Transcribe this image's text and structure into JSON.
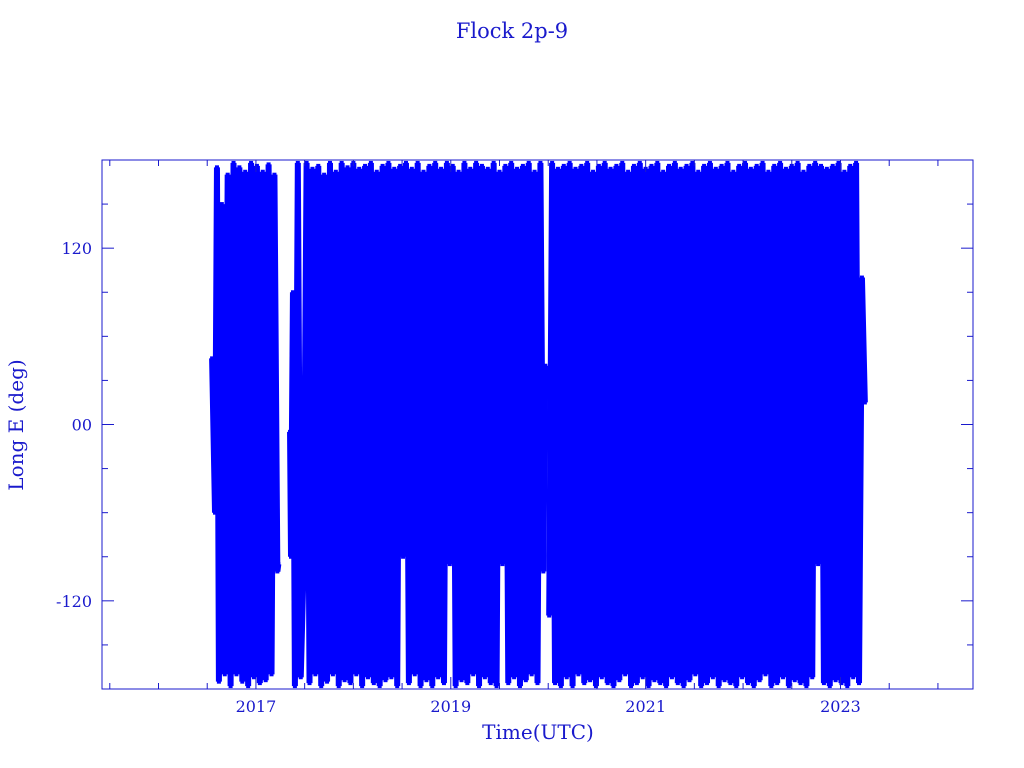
{
  "chart_data": {
    "type": "line",
    "title": "Flock 2p-9",
    "xlabel": "Time(UTC)",
    "ylabel": "Long E (deg)",
    "xlim": [
      2015.42,
      2024.36
    ],
    "ylim": [
      -180,
      180
    ],
    "x_ticks": [
      "2017",
      "2019",
      "2021",
      "2023"
    ],
    "x_tick_values": [
      2017,
      2019,
      2021,
      2023
    ],
    "y_ticks": [
      "120",
      "00",
      "-120"
    ],
    "y_tick_values": [
      120,
      0,
      -120
    ],
    "grid": false,
    "line_color": "#0000ff",
    "axis_color": "#1a1acc",
    "series": [
      {
        "segments": [
          [
            [
              2016.55,
              45
            ],
            [
              2016.58,
              -60
            ],
            [
              2016.6,
              175
            ],
            [
              2016.62,
              -175
            ],
            [
              2016.65,
              150
            ],
            [
              2016.68,
              -170
            ],
            [
              2016.71,
              170
            ],
            [
              2016.74,
              -178
            ],
            [
              2016.77,
              178
            ],
            [
              2016.8,
              -170
            ],
            [
              2016.83,
              175
            ],
            [
              2016.86,
              -175
            ],
            [
              2016.89,
              172
            ],
            [
              2016.92,
              -178
            ],
            [
              2016.95,
              178
            ],
            [
              2016.98,
              -172
            ],
            [
              2017.01,
              176
            ],
            [
              2017.04,
              -176
            ],
            [
              2017.07,
              172
            ],
            [
              2017.1,
              -174
            ],
            [
              2017.13,
              177
            ],
            [
              2017.16,
              -170
            ],
            [
              2017.19,
              170
            ],
            [
              2017.22,
              -100
            ],
            [
              2017.23,
              -95
            ]
          ],
          [
            [
              2017.35,
              -5
            ],
            [
              2017.36,
              -90
            ],
            [
              2017.38,
              90
            ],
            [
              2017.4,
              -178
            ],
            [
              2017.43,
              178
            ],
            [
              2017.46,
              -172
            ],
            [
              2017.49,
              -95
            ],
            [
              2017.52,
              178
            ],
            [
              2017.55,
              -176
            ],
            [
              2017.58,
              174
            ],
            [
              2017.61,
              -170
            ],
            [
              2017.64,
              176
            ],
            [
              2017.67,
              -178
            ],
            [
              2017.7,
              170
            ],
            [
              2017.73,
              -175
            ],
            [
              2017.76,
              178
            ],
            [
              2017.79,
              -170
            ],
            [
              2017.82,
              172
            ],
            [
              2017.85,
              -178
            ],
            [
              2017.88,
              178
            ],
            [
              2017.91,
              -174
            ],
            [
              2017.94,
              175
            ],
            [
              2017.97,
              -176
            ],
            [
              2018.0,
              178
            ],
            [
              2018.03,
              -170
            ],
            [
              2018.06,
              174
            ],
            [
              2018.09,
              -178
            ],
            [
              2018.12,
              176
            ],
            [
              2018.15,
              -172
            ],
            [
              2018.18,
              178
            ],
            [
              2018.21,
              -176
            ],
            [
              2018.24,
              172
            ],
            [
              2018.27,
              -178
            ],
            [
              2018.3,
              176
            ],
            [
              2018.33,
              -174
            ],
            [
              2018.36,
              178
            ],
            [
              2018.39,
              -172
            ],
            [
              2018.42,
              174
            ],
            [
              2018.45,
              -178
            ],
            [
              2018.48,
              176
            ],
            [
              2018.51,
              -90
            ],
            [
              2018.54,
              178
            ],
            [
              2018.57,
              -176
            ],
            [
              2018.6,
              174
            ],
            [
              2018.63,
              -170
            ],
            [
              2018.66,
              178
            ],
            [
              2018.69,
              -178
            ],
            [
              2018.72,
              172
            ],
            [
              2018.75,
              -174
            ],
            [
              2018.78,
              176
            ],
            [
              2018.81,
              -178
            ],
            [
              2018.84,
              178
            ],
            [
              2018.87,
              -172
            ],
            [
              2018.9,
              174
            ],
            [
              2018.93,
              -176
            ],
            [
              2018.96,
              178
            ],
            [
              2018.99,
              -95
            ],
            [
              2019.02,
              176
            ],
            [
              2019.05,
              -178
            ],
            [
              2019.08,
              172
            ],
            [
              2019.11,
              -174
            ],
            [
              2019.14,
              178
            ],
            [
              2019.17,
              -176
            ],
            [
              2019.2,
              174
            ],
            [
              2019.23,
              -170
            ],
            [
              2019.26,
              178
            ],
            [
              2019.29,
              -178
            ],
            [
              2019.32,
              176
            ],
            [
              2019.35,
              -172
            ],
            [
              2019.38,
              174
            ],
            [
              2019.41,
              -176
            ],
            [
              2019.44,
              178
            ],
            [
              2019.47,
              -178
            ],
            [
              2019.5,
              172
            ],
            [
              2019.53,
              -95
            ],
            [
              2019.56,
              176
            ],
            [
              2019.59,
              -176
            ],
            [
              2019.62,
              178
            ],
            [
              2019.65,
              -172
            ],
            [
              2019.68,
              174
            ],
            [
              2019.71,
              -178
            ],
            [
              2019.74,
              176
            ],
            [
              2019.77,
              -174
            ],
            [
              2019.8,
              178
            ],
            [
              2019.83,
              -170
            ],
            [
              2019.86,
              172
            ],
            [
              2019.89,
              -176
            ],
            [
              2019.92,
              178
            ],
            [
              2019.95,
              -100
            ],
            [
              2019.97,
              40
            ]
          ],
          [
            [
              2020.01,
              -130
            ],
            [
              2020.04,
              178
            ],
            [
              2020.07,
              -176
            ],
            [
              2020.1,
              174
            ],
            [
              2020.13,
              -178
            ],
            [
              2020.16,
              176
            ],
            [
              2020.19,
              -172
            ],
            [
              2020.22,
              178
            ],
            [
              2020.25,
              -178
            ],
            [
              2020.28,
              174
            ],
            [
              2020.31,
              -170
            ],
            [
              2020.34,
              176
            ],
            [
              2020.37,
              -176
            ],
            [
              2020.4,
              178
            ],
            [
              2020.43,
              -174
            ],
            [
              2020.46,
              172
            ],
            [
              2020.49,
              -178
            ],
            [
              2020.52,
              176
            ],
            [
              2020.55,
              -172
            ],
            [
              2020.58,
              178
            ],
            [
              2020.61,
              -176
            ],
            [
              2020.64,
              174
            ],
            [
              2020.67,
              -178
            ],
            [
              2020.7,
              176
            ],
            [
              2020.73,
              -174
            ],
            [
              2020.76,
              178
            ],
            [
              2020.79,
              -170
            ],
            [
              2020.82,
              172
            ],
            [
              2020.85,
              -178
            ],
            [
              2020.88,
              176
            ],
            [
              2020.91,
              -176
            ],
            [
              2020.94,
              178
            ],
            [
              2020.97,
              -172
            ],
            [
              2021.0,
              174
            ],
            [
              2021.03,
              -178
            ],
            [
              2021.06,
              176
            ],
            [
              2021.09,
              -174
            ],
            [
              2021.12,
              178
            ],
            [
              2021.15,
              -176
            ],
            [
              2021.18,
              172
            ],
            [
              2021.21,
              -178
            ],
            [
              2021.24,
              176
            ],
            [
              2021.27,
              -172
            ],
            [
              2021.3,
              178
            ],
            [
              2021.33,
              -176
            ],
            [
              2021.36,
              174
            ],
            [
              2021.39,
              -178
            ],
            [
              2021.42,
              176
            ],
            [
              2021.45,
              -174
            ],
            [
              2021.48,
              178
            ],
            [
              2021.51,
              -170
            ],
            [
              2021.54,
              172
            ],
            [
              2021.57,
              -178
            ],
            [
              2021.6,
              176
            ],
            [
              2021.63,
              -176
            ],
            [
              2021.66,
              178
            ],
            [
              2021.69,
              -172
            ],
            [
              2021.72,
              174
            ],
            [
              2021.75,
              -178
            ],
            [
              2021.78,
              176
            ],
            [
              2021.81,
              -174
            ],
            [
              2021.84,
              178
            ],
            [
              2021.87,
              -176
            ],
            [
              2021.9,
              172
            ],
            [
              2021.93,
              -178
            ],
            [
              2021.96,
              176
            ],
            [
              2021.99,
              -172
            ],
            [
              2022.02,
              178
            ],
            [
              2022.05,
              -176
            ],
            [
              2022.08,
              174
            ],
            [
              2022.11,
              -178
            ],
            [
              2022.14,
              176
            ],
            [
              2022.17,
              -174
            ],
            [
              2022.2,
              178
            ],
            [
              2022.23,
              -170
            ],
            [
              2022.26,
              172
            ],
            [
              2022.29,
              -178
            ],
            [
              2022.32,
              176
            ],
            [
              2022.35,
              -176
            ],
            [
              2022.38,
              178
            ],
            [
              2022.41,
              -172
            ],
            [
              2022.44,
              174
            ],
            [
              2022.47,
              -178
            ],
            [
              2022.5,
              176
            ],
            [
              2022.53,
              -174
            ],
            [
              2022.56,
              178
            ],
            [
              2022.59,
              -176
            ],
            [
              2022.62,
              172
            ],
            [
              2022.65,
              -178
            ],
            [
              2022.68,
              176
            ],
            [
              2022.71,
              -172
            ],
            [
              2022.74,
              178
            ],
            [
              2022.77,
              -95
            ],
            [
              2022.8,
              176
            ],
            [
              2022.83,
              -176
            ],
            [
              2022.86,
              174
            ],
            [
              2022.89,
              -178
            ],
            [
              2022.92,
              176
            ],
            [
              2022.95,
              -174
            ],
            [
              2022.98,
              178
            ],
            [
              2023.01,
              -176
            ],
            [
              2023.04,
              172
            ],
            [
              2023.07,
              -178
            ],
            [
              2023.1,
              176
            ],
            [
              2023.13,
              -172
            ],
            [
              2023.16,
              178
            ],
            [
              2023.19,
              -176
            ],
            [
              2023.22,
              100
            ],
            [
              2023.25,
              15
            ]
          ]
        ]
      }
    ]
  }
}
